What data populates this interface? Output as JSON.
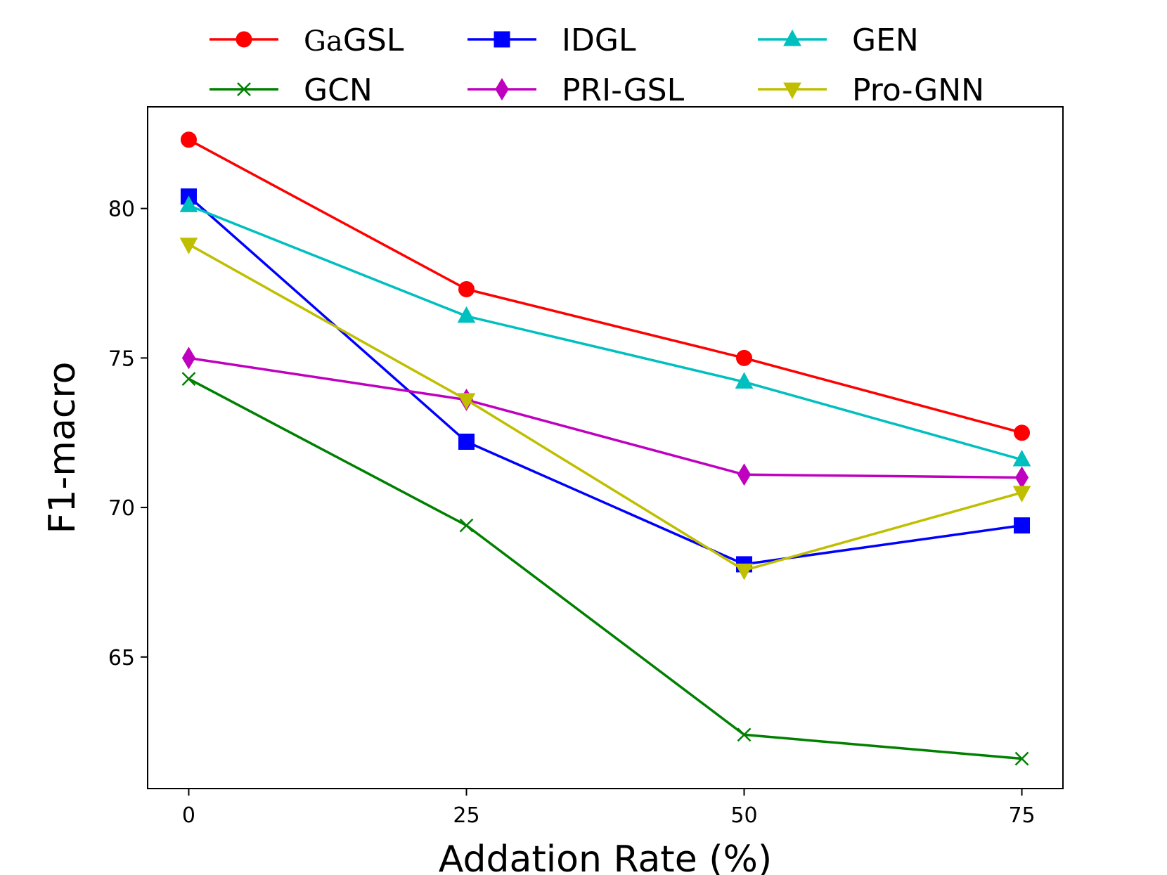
{
  "chart_data": {
    "type": "line",
    "title": "",
    "xlabel": "Addation Rate (%)",
    "ylabel": "F1-macro",
    "x": [
      0,
      25,
      50,
      75
    ],
    "xticks": [
      "0",
      "25",
      "50",
      "75"
    ],
    "yticks": [
      "65",
      "70",
      "75",
      "80"
    ],
    "xlim": [
      -3.7,
      78.7
    ],
    "ylim": [
      60.6,
      83.4
    ],
    "grid": false,
    "legend_position": "top, above plot, 3 columns",
    "series": [
      {
        "name": "GaGSL",
        "name_prefix": "Ga",
        "name_suffix": "GSL",
        "color": "#ff0000",
        "marker": "circle",
        "values": [
          82.3,
          77.3,
          75.0,
          72.5
        ]
      },
      {
        "name": "GCN",
        "color": "#008000",
        "marker": "x",
        "values": [
          74.3,
          69.4,
          62.4,
          61.6
        ]
      },
      {
        "name": "IDGL",
        "color": "#0000ff",
        "marker": "square",
        "values": [
          80.4,
          72.2,
          68.1,
          69.4
        ]
      },
      {
        "name": "PRI-GSL",
        "color": "#bf00bf",
        "marker": "diamond",
        "values": [
          75.0,
          73.6,
          71.1,
          71.0
        ]
      },
      {
        "name": "GEN",
        "color": "#00bfbf",
        "marker": "triangle-up",
        "values": [
          80.1,
          76.4,
          74.2,
          71.6
        ]
      },
      {
        "name": "Pro-GNN",
        "color": "#bfbf00",
        "marker": "triangle-down",
        "values": [
          78.8,
          73.6,
          67.9,
          70.5
        ]
      }
    ]
  }
}
